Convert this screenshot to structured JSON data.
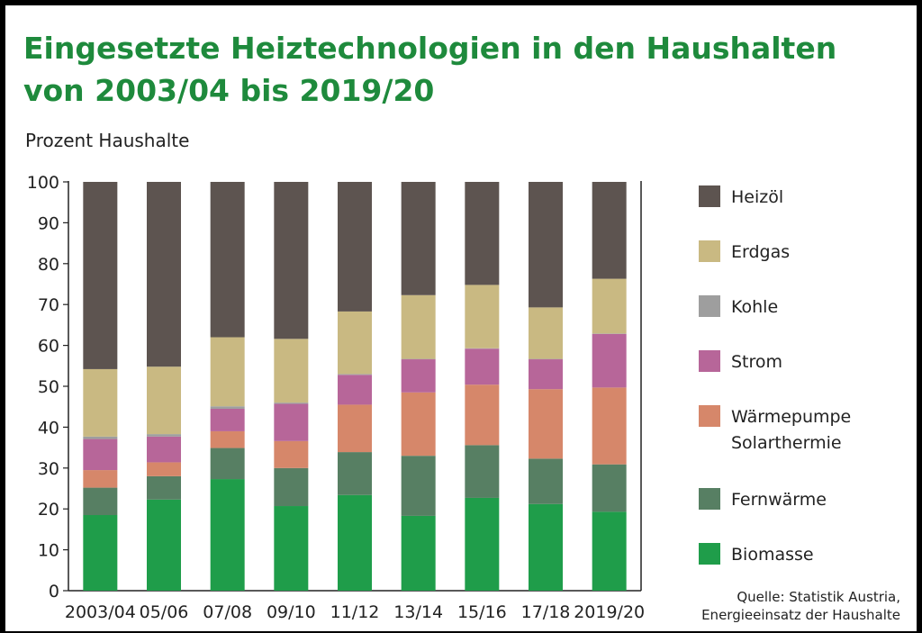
{
  "title_lines": [
    "Eingesetzte Heiztechnologien in den Haushalten",
    "von 2003/04 bis 2019/20"
  ],
  "source_lines": [
    "Quelle: Statistik Austria,",
    "Energieeinsatz der Haushalte"
  ],
  "colors": {
    "Biomasse": "#1f9d4a",
    "Fernwärme": "#577f63",
    "Wärmepumpe Solarthermie": "#d6876a",
    "Strom": "#b76699",
    "Kohle": "#9e9e9e",
    "Erdgas": "#c9b982",
    "Heizöl": "#5d5450"
  },
  "chart_data": {
    "type": "bar",
    "stacked": true,
    "ylabel": "Prozent Haushalte",
    "ylim": [
      0,
      100
    ],
    "yticks": [
      0,
      10,
      20,
      30,
      40,
      50,
      60,
      70,
      80,
      90,
      100
    ],
    "grid": false,
    "legend_position": "right",
    "categories": [
      "2003/04",
      "05/06",
      "07/08",
      "09/10",
      "11/12",
      "13/14",
      "15/16",
      "17/18",
      "2019/20"
    ],
    "series": [
      {
        "name": "Biomasse",
        "values": [
          18.5,
          22.3,
          27.3,
          20.7,
          23.4,
          18.3,
          22.7,
          21.2,
          19.3
        ]
      },
      {
        "name": "Fernwärme",
        "values": [
          6.7,
          5.7,
          7.6,
          9.3,
          10.5,
          14.7,
          12.9,
          11.1,
          11.6
        ]
      },
      {
        "name": "Wärmepumpe Solarthermie",
        "values": [
          4.3,
          3.4,
          4.1,
          6.6,
          11.6,
          15.5,
          14.8,
          17.0,
          18.8
        ]
      },
      {
        "name": "Strom",
        "values": [
          7.6,
          6.3,
          5.5,
          9.1,
          7.3,
          8.1,
          8.8,
          7.3,
          13.1
        ]
      },
      {
        "name": "Kohle",
        "values": [
          0.6,
          0.6,
          0.6,
          0.3,
          0.2,
          0.1,
          0.1,
          0.1,
          0.1
        ]
      },
      {
        "name": "Erdgas",
        "values": [
          16.5,
          16.5,
          16.9,
          15.6,
          15.3,
          15.6,
          15.5,
          12.6,
          13.4
        ]
      },
      {
        "name": "Heizöl",
        "values": [
          45.8,
          45.2,
          38.0,
          38.4,
          31.7,
          27.7,
          25.2,
          30.7,
          23.7
        ]
      }
    ],
    "legend": [
      "Heizöl",
      "Erdgas",
      "Kohle",
      "Strom",
      [
        "Wärmepumpe",
        "Solarthermie"
      ],
      "Fernwärme",
      "Biomasse"
    ]
  }
}
